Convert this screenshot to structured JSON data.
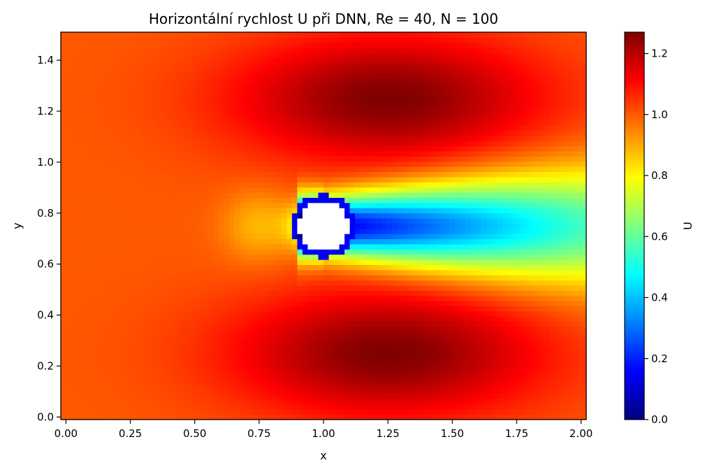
{
  "chart_data": {
    "type": "heatmap",
    "title": "Horizontální rychlost U při DNN, Re = 40, N = 100",
    "xlabel": "x",
    "ylabel": "y",
    "xlim": [
      -0.02,
      2.02
    ],
    "ylim": [
      -0.01,
      1.51
    ],
    "xticks": [
      "0.00",
      "0.25",
      "0.50",
      "0.75",
      "1.00",
      "1.25",
      "1.50",
      "1.75",
      "2.00"
    ],
    "yticks": [
      "0.0",
      "0.2",
      "0.4",
      "0.6",
      "0.8",
      "1.0",
      "1.2",
      "1.4"
    ],
    "grid_resolution": 100,
    "colorbar": {
      "label": "U",
      "range": [
        0.0,
        1.27
      ],
      "ticks": [
        "0.0",
        "0.2",
        "0.4",
        "0.6",
        "0.8",
        "1.0",
        "1.2"
      ],
      "colormap": "jet"
    },
    "field": {
      "free_stream": 1.0,
      "max_value": 1.27,
      "min_value": 0.0,
      "obstacle": {
        "shape": "circle",
        "center": [
          1.0,
          0.75
        ],
        "radius": 0.1
      },
      "wake": {
        "centerline_y": 0.75,
        "min_velocity_behind_obstacle": 0.1,
        "recovery_at_x_2": 0.55
      },
      "acceleration_lobes": [
        {
          "center": [
            1.25,
            1.25
          ],
          "value": 1.27
        },
        {
          "center": [
            1.25,
            0.25
          ],
          "value": 1.27
        }
      ]
    }
  }
}
